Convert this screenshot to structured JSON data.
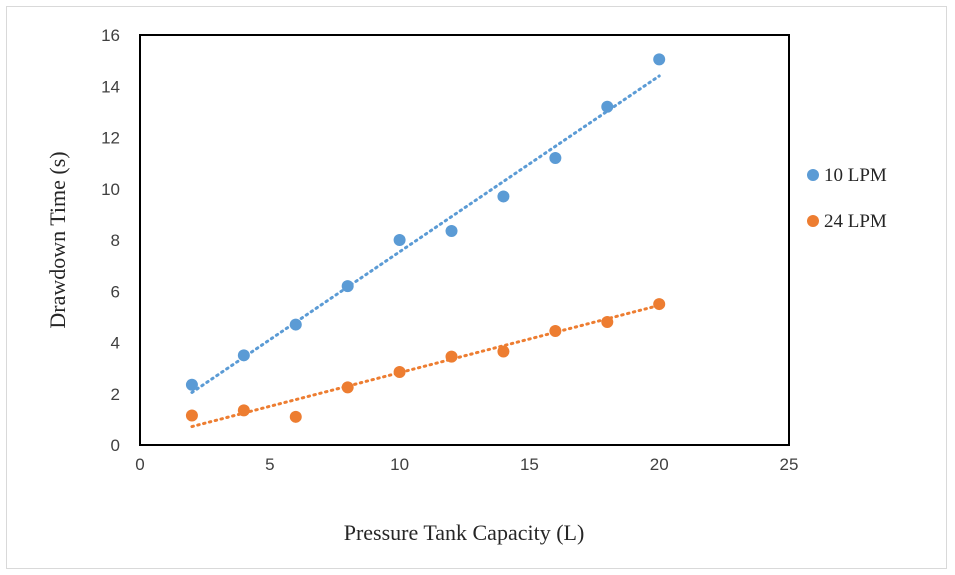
{
  "chart_data": {
    "type": "scatter",
    "xlabel": "Pressure Tank Capacity (L)",
    "ylabel": "Drawdown Time (s)",
    "xlim": [
      0,
      25
    ],
    "ylim": [
      0,
      16
    ],
    "xticks": [
      0,
      5,
      10,
      15,
      20,
      25
    ],
    "yticks": [
      0,
      2,
      4,
      6,
      8,
      10,
      12,
      14,
      16
    ],
    "grid": false,
    "legend_position": "right",
    "series": [
      {
        "name": "10 LPM",
        "color": "#5b9bd5",
        "x": [
          2,
          4,
          6,
          8,
          10,
          12,
          14,
          16,
          18,
          20
        ],
        "y": [
          2.35,
          3.5,
          4.7,
          6.2,
          8.0,
          8.35,
          9.7,
          11.2,
          13.2,
          15.05
        ],
        "trendline": {
          "type": "linear",
          "style": "dotted",
          "from": [
            2,
            2.05
          ],
          "to": [
            20,
            14.4
          ]
        }
      },
      {
        "name": "24 LPM",
        "color": "#ed7d31",
        "x": [
          2,
          4,
          6,
          8,
          10,
          12,
          14,
          16,
          18,
          20
        ],
        "y": [
          1.15,
          1.35,
          1.1,
          2.25,
          2.85,
          3.45,
          3.65,
          4.45,
          4.8,
          5.5
        ],
        "trendline": {
          "type": "linear",
          "style": "dotted",
          "from": [
            2,
            0.72
          ],
          "to": [
            20,
            5.45
          ]
        }
      }
    ]
  }
}
